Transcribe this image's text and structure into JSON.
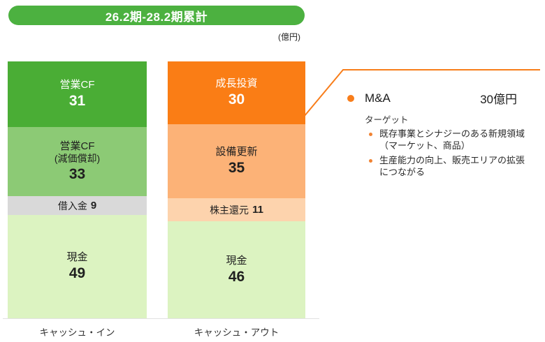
{
  "header": {
    "title": "26.2期-28.2期累計",
    "unit": "(億円)",
    "pill_color": "#4cb140"
  },
  "chart_data": {
    "type": "bar",
    "stacked": true,
    "orientation": "vertical",
    "title": "26.2期-28.2期累計",
    "unit_label": "(億円)",
    "value_unit": "億円",
    "grid": false,
    "legend": false,
    "categories": [
      "キャッシュ・イン",
      "キャッシュ・アウト"
    ],
    "totals": [
      122,
      122
    ],
    "bars": [
      {
        "label": "キャッシュ・イン",
        "segments": [
          {
            "name": "営業CF",
            "value": 31,
            "color": "#4aad35",
            "text_color": "#ffffff"
          },
          {
            "name": "営業CF",
            "name_note": "(減価償却)",
            "value": 33,
            "color": "#8cca75",
            "text_color": "#1f1f1f"
          },
          {
            "name": "借入金",
            "value": 9,
            "color": "#d9d9d9",
            "text_color": "#1f1f1f",
            "inline": true
          },
          {
            "name": "現金",
            "value": 49,
            "color": "#dcf3c1",
            "text_color": "#1f1f1f"
          }
        ]
      },
      {
        "label": "キャッシュ・アウト",
        "segments": [
          {
            "name": "成長投資",
            "value": 30,
            "color": "#fa7d15",
            "text_color": "#ffffff"
          },
          {
            "name": "設備更新",
            "value": 35,
            "color": "#fcb277",
            "text_color": "#1f1f1f"
          },
          {
            "name": "株主還元",
            "value": 11,
            "color": "#fdd3ad",
            "text_color": "#1f1f1f",
            "inline": true
          },
          {
            "name": "現金",
            "value": 46,
            "color": "#dcf3c1",
            "text_color": "#1f1f1f"
          }
        ]
      }
    ]
  },
  "callout": {
    "item_label": "M&A",
    "item_value": "30億円",
    "subtitle": "ターゲット",
    "bullets": [
      [
        "既存事業とシナジーのある新規領域",
        "（マーケット、商品）"
      ],
      [
        "生産能力の向上、販売エリアの拡張",
        "につながる"
      ]
    ],
    "accent_color": "#f87d1a",
    "bullet_dot_color": "#f08333"
  }
}
